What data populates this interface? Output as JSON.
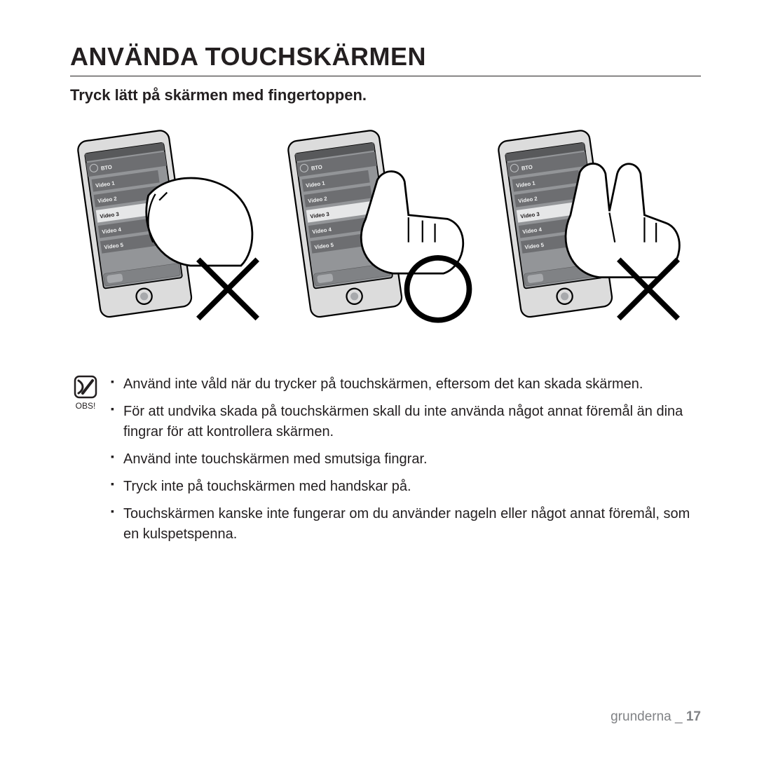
{
  "title": "ANVÄNDA TOUCHSKÄRMEN",
  "subtitle": "Tryck lätt på skärmen med fingertoppen.",
  "figures": {
    "device": {
      "body_fill": "#dcdcdc",
      "body_stroke": "#000000",
      "screen_fill": "#939598",
      "row_fill": "#6d6e71",
      "row_sel_fill": "#e6e7e8",
      "text_fill": "#f1f2f2",
      "text_sel_fill": "#231f20",
      "home_label": "ВТО",
      "rows": [
        "Video 1",
        "Video 2",
        "Video 3",
        "Video 4",
        "Video 5"
      ]
    },
    "items": [
      {
        "mark": "x",
        "sel_row": 2,
        "hand": "press"
      },
      {
        "mark": "o",
        "sel_row": 2,
        "hand": "tap"
      },
      {
        "mark": "x",
        "sel_row": 2,
        "hand": "twofinger"
      }
    ]
  },
  "note_label": "OBS!",
  "notes": [
    "Använd inte våld när du trycker på touchskärmen, eftersom det kan skada skärmen.",
    "För att undvika skada på touchskärmen skall du inte använda något annat föremål än dina fingrar för att kontrollera skärmen.",
    "Använd inte touchskärmen med smutsiga fingrar.",
    "Tryck inte på touchskärmen med handskar på.",
    "Touchskärmen kanske inte fungerar om du använder nageln eller något annat föremål, som en kulspetspenna."
  ],
  "footer_section": "grunderna",
  "footer_sep": " _ ",
  "footer_page": "17"
}
